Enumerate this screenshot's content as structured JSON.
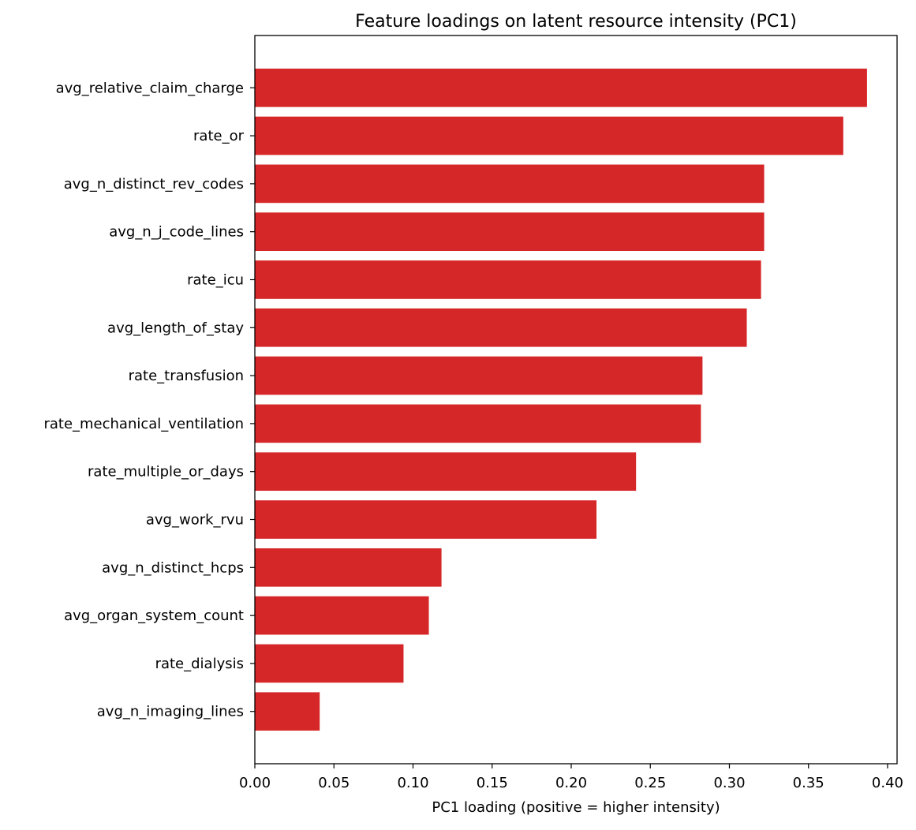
{
  "chart_data": {
    "type": "bar",
    "orientation": "horizontal",
    "title": "Feature loadings on latent resource intensity (PC1)",
    "xlabel": "PC1 loading (positive = higher intensity)",
    "ylabel": "",
    "xlim": [
      0,
      0.406
    ],
    "xticks": [
      "0.00",
      "0.05",
      "0.10",
      "0.15",
      "0.20",
      "0.25",
      "0.30",
      "0.35",
      "0.40"
    ],
    "grid": false,
    "bar_color": "#d62728",
    "categories": [
      "avg_relative_claim_charge",
      "rate_or",
      "avg_n_distinct_rev_codes",
      "avg_n_j_code_lines",
      "rate_icu",
      "avg_length_of_stay",
      "rate_transfusion",
      "rate_mechanical_ventilation",
      "rate_multiple_or_days",
      "avg_work_rvu",
      "avg_n_distinct_hcps",
      "avg_organ_system_count",
      "rate_dialysis",
      "avg_n_imaging_lines"
    ],
    "values": [
      0.387,
      0.372,
      0.322,
      0.322,
      0.32,
      0.311,
      0.283,
      0.282,
      0.241,
      0.216,
      0.118,
      0.11,
      0.094,
      0.041
    ]
  }
}
